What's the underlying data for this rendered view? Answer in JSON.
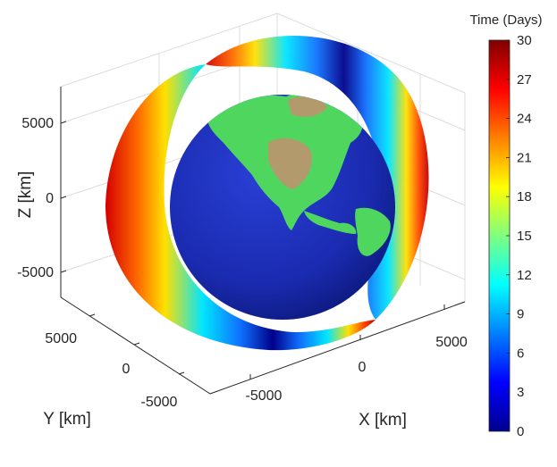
{
  "chart_data": {
    "type": "3d-surface-orbit",
    "title": "",
    "xlabel": "X [km]",
    "ylabel": "Y [km]",
    "zlabel": "Z [km]",
    "x_ticks": [
      "-5000",
      "0",
      "5000"
    ],
    "y_ticks": [
      "5000",
      "0",
      "-5000"
    ],
    "z_ticks": [
      "5000",
      "0",
      "-5000"
    ],
    "grid": true,
    "objects": [
      {
        "name": "Earth",
        "kind": "textured-sphere"
      },
      {
        "name": "orbit",
        "kind": "swept-ring",
        "color_by": "time"
      }
    ],
    "colorbar": {
      "title": "Time (Days)",
      "colormap": "jet",
      "range": [
        0,
        30
      ],
      "ticks": [
        "30",
        "27",
        "24",
        "21",
        "18",
        "15",
        "12",
        "9",
        "6",
        "3",
        "0"
      ]
    },
    "colors": {
      "ocean": "#1a2bb0",
      "land": "#4fd65f",
      "desert": "#b39a6c",
      "orbit_start": "#000080",
      "orbit_end": "#800000"
    }
  }
}
